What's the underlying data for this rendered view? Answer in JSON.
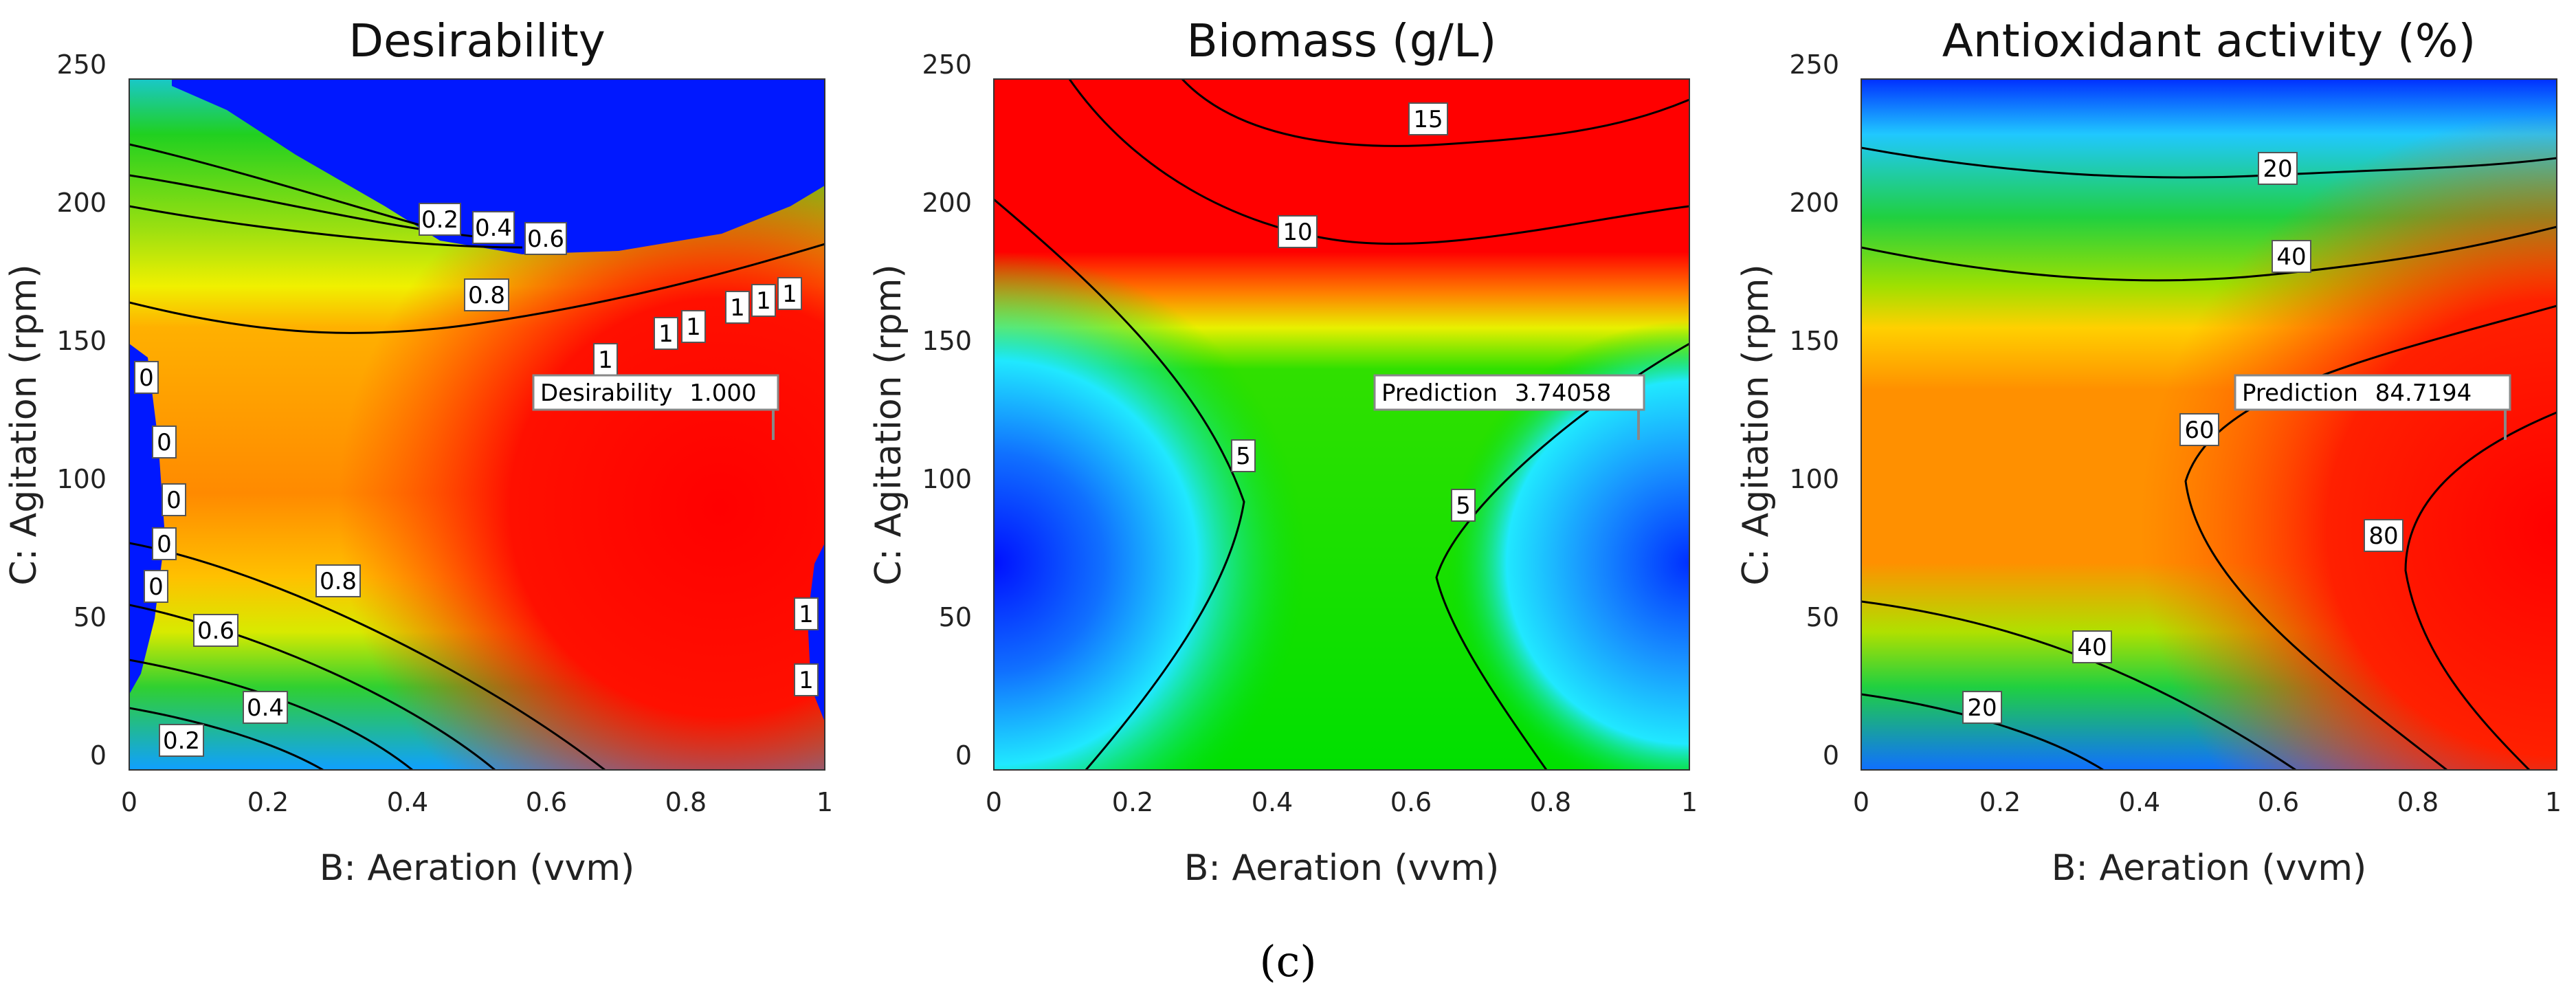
{
  "caption": "(c)",
  "chart_data": [
    {
      "type": "contour",
      "title": "Desirability",
      "xlabel": "B: Aeration (vvm)",
      "ylabel": "C: Agitation (rpm)",
      "xlim": [
        0,
        1
      ],
      "ylim": [
        0,
        250
      ],
      "xticks": [
        "0",
        "0.2",
        "0.4",
        "0.6",
        "0.8",
        "1"
      ],
      "yticks": [
        "0",
        "50",
        "100",
        "150",
        "200",
        "250"
      ],
      "contour_labels": [
        "0.2",
        "0.4",
        "0.6",
        "0.8",
        "1",
        "1",
        "1",
        "1",
        "1",
        "1",
        "0",
        "0",
        "0",
        "0",
        "0",
        "0.8",
        "0.6",
        "0.4",
        "0.2",
        "1",
        "1"
      ],
      "prediction": {
        "label": "Desirability",
        "value": "1.000",
        "x": 0.93,
        "y": 120
      }
    },
    {
      "type": "contour",
      "title": "Biomass  (g/L)",
      "xlabel": "B: Aeration (vvm)",
      "ylabel": "C: Agitation (rpm)",
      "xlim": [
        0,
        1
      ],
      "ylim": [
        0,
        250
      ],
      "xticks": [
        "0",
        "0.2",
        "0.4",
        "0.6",
        "0.8",
        "1"
      ],
      "yticks": [
        "0",
        "50",
        "100",
        "150",
        "200",
        "250"
      ],
      "contour_labels": [
        "15",
        "10",
        "5",
        "5"
      ],
      "prediction": {
        "label": "Prediction",
        "value": "3.74058",
        "x": 0.93,
        "y": 120
      }
    },
    {
      "type": "contour",
      "title": "Antioxidant activity (%)",
      "xlabel": "B: Aeration (vvm)",
      "ylabel": "C: Agitation (rpm)",
      "xlim": [
        0,
        1
      ],
      "ylim": [
        0,
        250
      ],
      "xticks": [
        "0",
        "0.2",
        "0.4",
        "0.6",
        "0.8",
        "1"
      ],
      "yticks": [
        "0",
        "50",
        "100",
        "150",
        "200",
        "250"
      ],
      "contour_labels": [
        "20",
        "40",
        "60",
        "80",
        "40",
        "20"
      ],
      "prediction": {
        "label": "Prediction",
        "value": "84.7194",
        "x": 0.93,
        "y": 120
      }
    }
  ]
}
